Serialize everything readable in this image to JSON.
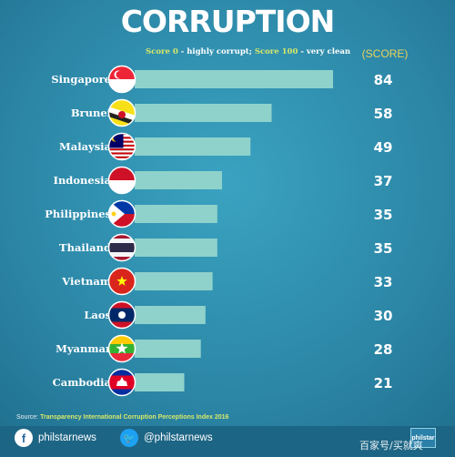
{
  "header": {
    "title": "CORRUPTION",
    "subtitle_a": "Score 0",
    "subtitle_b": " - highly corrupt; ",
    "subtitle_c": "Score 100",
    "subtitle_d": " - very clean",
    "score_heading": "(SCORE)"
  },
  "chart_data": {
    "type": "bar",
    "orientation": "horizontal",
    "title": "CORRUPTION",
    "subtitle": "Score 0 - highly corrupt; Score 100 - very clean",
    "xlim": [
      0,
      100
    ],
    "categories": [
      "Singapore",
      "Brunei",
      "Malaysia",
      "Indonesia",
      "Philippines",
      "Thailand",
      "Vietnam",
      "Laos",
      "Myanmar",
      "Cambodia"
    ],
    "values": [
      84,
      58,
      49,
      37,
      35,
      35,
      33,
      30,
      28,
      21
    ],
    "flags": [
      "singapore-flag-icon",
      "brunei-flag-icon",
      "malaysia-flag-icon",
      "indonesia-flag-icon",
      "philippines-flag-icon",
      "thailand-flag-icon",
      "vietnam-flag-icon",
      "laos-flag-icon",
      "myanmar-flag-icon",
      "cambodia-flag-icon"
    ],
    "bar_color": "#8fd2cb",
    "value_color": "#ffffff"
  },
  "footer": {
    "source_label": "Source: ",
    "source_text": "Transparency International Corruption Perceptions Index 2016",
    "facebook_handle": "philstarnews",
    "twitter_handle": "@philstarnews",
    "logo_text": "philstar",
    "watermark": "百家号/买就爽"
  }
}
